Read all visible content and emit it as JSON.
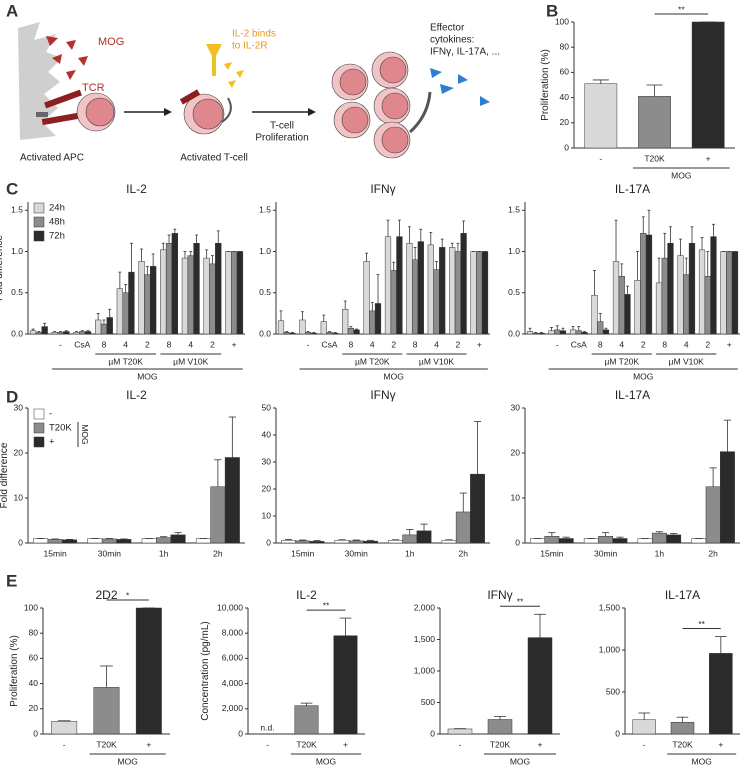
{
  "panel_labels": [
    "A",
    "B",
    "C",
    "D",
    "E"
  ],
  "diagram": {
    "antigen": "MOG",
    "receptor": "TCR",
    "apc_label": "Activated APC",
    "il2_note": [
      "IL-2 binds",
      "to IL-2R"
    ],
    "tcell_label": "Activated T-cell",
    "proliferation": [
      "T-cell",
      "Proliferation"
    ],
    "cytokines": [
      "Effector",
      "cytokines:",
      "IFNγ, IL-17A, ..."
    ]
  },
  "chart_data": [
    {
      "type": "bar",
      "ylabel": "Proliferation (%)",
      "categories": [
        "-",
        "T20K",
        "+"
      ],
      "values": [
        51,
        41,
        100
      ],
      "errors": [
        3,
        9,
        0
      ],
      "colors": [
        "#d9d9d9",
        "#8c8c8c",
        "#2b2b2b"
      ],
      "ylim": [
        0,
        100
      ],
      "yticks": [
        0,
        20,
        40,
        60,
        80,
        100
      ],
      "groups": [
        {
          "label": "MOG",
          "from": 1,
          "to": 2
        }
      ],
      "significance": [
        {
          "label": "**",
          "from": 1,
          "to": 2
        }
      ]
    },
    {
      "type": "bar",
      "title": "IL-2",
      "ylabel": "Fold difference",
      "categories": [
        null,
        "-",
        "CsA",
        "8",
        "4",
        "2",
        "8",
        "4",
        "2",
        "+"
      ],
      "ylim": [
        0,
        1.6
      ],
      "yticks": [
        {
          "value": 0,
          "label": "0.0"
        },
        {
          "value": 0.5,
          "label": "0.5"
        },
        {
          "value": 1,
          "label": "1.0"
        },
        {
          "value": 1.5,
          "label": "1.5"
        }
      ],
      "legend": "top-left",
      "series": [
        {
          "name": "24h",
          "color": "#d9d9d9",
          "values": [
            0.04,
            0.02,
            0.02,
            0.17,
            0.55,
            0.88,
            1.02,
            0.92,
            0.92,
            1.0
          ],
          "errors": [
            0.02,
            0.01,
            0.01,
            0.08,
            0.2,
            0.15,
            0.08,
            0.08,
            0.1,
            0
          ]
        },
        {
          "name": "48h",
          "color": "#8c8c8c",
          "values": [
            0.02,
            0.02,
            0.03,
            0.12,
            0.5,
            0.72,
            1.1,
            0.95,
            0.85,
            1.0
          ],
          "errors": [
            0.01,
            0.01,
            0.01,
            0.05,
            0.1,
            0.1,
            0.1,
            0.05,
            0.1,
            0
          ]
        },
        {
          "name": "72h",
          "color": "#2b2b2b",
          "values": [
            0.09,
            0.03,
            0.03,
            0.2,
            0.75,
            0.82,
            1.22,
            1.1,
            1.1,
            1.0
          ],
          "errors": [
            0.04,
            0.01,
            0.01,
            0.1,
            0.35,
            0.15,
            0.05,
            0.1,
            0.15,
            0
          ]
        }
      ],
      "groups": [
        {
          "label": "µM T20K",
          "from": 3,
          "to": 5
        },
        {
          "label": "µM V10K",
          "from": 6,
          "to": 8
        },
        {
          "label": "MOG",
          "from": 1,
          "to": 9
        }
      ]
    },
    {
      "type": "bar",
      "title": "IFNγ",
      "categories": [
        null,
        "-",
        "CsA",
        "8",
        "4",
        "2",
        "8",
        "4",
        "2",
        "+"
      ],
      "ylim": [
        0,
        1.6
      ],
      "yticks": [
        {
          "value": 0,
          "label": "0.0"
        },
        {
          "value": 0.5,
          "label": "0.5"
        },
        {
          "value": 1,
          "label": "1.0"
        },
        {
          "value": 1.5,
          "label": "1.5"
        }
      ],
      "series": [
        {
          "color": "#d9d9d9",
          "values": [
            0.16,
            0.17,
            0.15,
            0.3,
            0.88,
            1.18,
            1.1,
            1.08,
            1.05,
            1.0
          ],
          "errors": [
            0.12,
            0.1,
            0.08,
            0.1,
            0.1,
            0.2,
            0.2,
            0.15,
            0.05,
            0
          ]
        },
        {
          "color": "#8c8c8c",
          "values": [
            0.02,
            0.02,
            0.02,
            0.07,
            0.28,
            0.77,
            0.9,
            0.78,
            1.0,
            1.0
          ],
          "errors": [
            0.01,
            0.01,
            0.01,
            0.02,
            0.1,
            0.1,
            0.15,
            0.1,
            0.1,
            0
          ]
        },
        {
          "color": "#2b2b2b",
          "values": [
            0.01,
            0.01,
            0.01,
            0.05,
            0.37,
            1.18,
            1.12,
            1.05,
            1.22,
            1.0
          ],
          "errors": [
            0.01,
            0.01,
            0.01,
            0.01,
            0.35,
            0.2,
            0.15,
            0.1,
            0.15,
            0
          ]
        }
      ],
      "groups": [
        {
          "label": "µM T20K",
          "from": 3,
          "to": 5
        },
        {
          "label": "µM V10K",
          "from": 6,
          "to": 8
        },
        {
          "label": "MOG",
          "from": 1,
          "to": 9
        }
      ]
    },
    {
      "type": "bar",
      "title": "IL-17A",
      "categories": [
        null,
        "-",
        "CsA",
        "8",
        "4",
        "2",
        "8",
        "4",
        "2",
        "+"
      ],
      "ylim": [
        0,
        1.6
      ],
      "yticks": [
        {
          "value": 0,
          "label": "0.0"
        },
        {
          "value": 0.5,
          "label": "0.5"
        },
        {
          "value": 1,
          "label": "1.0"
        },
        {
          "value": 1.5,
          "label": "1.5"
        }
      ],
      "series": [
        {
          "color": "#d9d9d9",
          "values": [
            0.03,
            0.04,
            0.05,
            0.47,
            0.88,
            0.65,
            0.62,
            0.95,
            1.02,
            1.0
          ],
          "errors": [
            0.04,
            0.04,
            0.04,
            0.3,
            0.5,
            0.35,
            0.3,
            0.2,
            0.15,
            0
          ]
        },
        {
          "color": "#8c8c8c",
          "values": [
            0.01,
            0.05,
            0.04,
            0.15,
            0.7,
            1.22,
            0.92,
            0.72,
            0.7,
            1.0
          ],
          "errors": [
            0.01,
            0.05,
            0.05,
            0.1,
            0.15,
            0.2,
            0.3,
            0.2,
            0.3,
            0
          ]
        },
        {
          "color": "#2b2b2b",
          "values": [
            0.01,
            0.04,
            0.02,
            0.05,
            0.48,
            1.2,
            1.1,
            1.1,
            1.18,
            1.0
          ],
          "errors": [
            0.01,
            0.03,
            0.01,
            0.02,
            0.1,
            0.3,
            0.2,
            0.2,
            0.15,
            0
          ]
        }
      ],
      "groups": [
        {
          "label": "µM T20K",
          "from": 3,
          "to": 5
        },
        {
          "label": "µM V10K",
          "from": 6,
          "to": 8
        },
        {
          "label": "MOG",
          "from": 1,
          "to": 9
        }
      ]
    },
    {
      "type": "bar",
      "title": "IL-2",
      "ylabel": "Fold difference",
      "categories": [
        "15min",
        "30min",
        "1h",
        "2h"
      ],
      "ylim": [
        0,
        30
      ],
      "yticks": [
        0,
        10,
        20,
        30
      ],
      "legend": "top-left",
      "legend_group_label": "MOG",
      "series": [
        {
          "name": "-",
          "color": "#ffffff",
          "values": [
            1,
            1,
            1,
            1
          ],
          "errors": [
            0,
            0,
            0,
            0
          ]
        },
        {
          "name": "T20K",
          "color": "#8c8c8c",
          "values": [
            0.8,
            0.9,
            1.2,
            12.5
          ],
          "errors": [
            0.1,
            0.1,
            0.2,
            6
          ]
        },
        {
          "name": "+",
          "color": "#2b2b2b",
          "values": [
            0.7,
            0.8,
            1.8,
            19
          ],
          "errors": [
            0.1,
            0.1,
            0.5,
            9
          ]
        }
      ]
    },
    {
      "type": "bar",
      "title": "IFNγ",
      "categories": [
        "15min",
        "30min",
        "1h",
        "2h"
      ],
      "ylim": [
        0,
        50
      ],
      "yticks": [
        0,
        10,
        20,
        30,
        40,
        50
      ],
      "series": [
        {
          "color": "#ffffff",
          "values": [
            1,
            1,
            1,
            1
          ],
          "errors": [
            0.3,
            0.2,
            0.2,
            0.2
          ]
        },
        {
          "color": "#8c8c8c",
          "values": [
            0.8,
            0.8,
            3,
            11.5
          ],
          "errors": [
            0.3,
            0.3,
            2,
            7
          ]
        },
        {
          "color": "#2b2b2b",
          "values": [
            0.6,
            0.7,
            4.5,
            25.5
          ],
          "errors": [
            0.3,
            0.3,
            2.5,
            19.5
          ]
        }
      ]
    },
    {
      "type": "bar",
      "title": "IL-17A",
      "categories": [
        "15min",
        "30min",
        "1h",
        "2h"
      ],
      "ylim": [
        0,
        30
      ],
      "yticks": [
        0,
        10,
        20,
        30
      ],
      "series": [
        {
          "color": "#ffffff",
          "values": [
            1,
            1,
            1,
            1
          ],
          "errors": [
            0,
            0,
            0,
            0
          ]
        },
        {
          "color": "#8c8c8c",
          "values": [
            1.5,
            1.5,
            2.2,
            12.5
          ],
          "errors": [
            0.8,
            0.8,
            0.3,
            4.2
          ]
        },
        {
          "color": "#2b2b2b",
          "values": [
            1,
            1,
            1.8,
            20.3
          ],
          "errors": [
            0.3,
            0.3,
            0.3,
            7
          ]
        }
      ]
    },
    {
      "type": "bar",
      "title": "2D2",
      "ylabel": "Proliferation (%)",
      "categories": [
        "-",
        "T20K",
        "+"
      ],
      "values": [
        10,
        37,
        100
      ],
      "errors": [
        0.5,
        17,
        0
      ],
      "colors": [
        "#d9d9d9",
        "#8c8c8c",
        "#2b2b2b"
      ],
      "ylim": [
        0,
        100
      ],
      "yticks": [
        0,
        20,
        40,
        60,
        80,
        100
      ],
      "groups": [
        {
          "label": "MOG",
          "from": 1,
          "to": 2
        }
      ],
      "significance": [
        {
          "label": "*",
          "from": 1,
          "to": 2
        }
      ]
    },
    {
      "type": "bar",
      "title": "IL-2",
      "ylabel": "Concentration (pg/mL)",
      "categories": [
        "-",
        "T20K",
        "+"
      ],
      "values": [
        null,
        2250,
        7800
      ],
      "value_labels": [
        "n.d.",
        null,
        null
      ],
      "errors": [
        null,
        200,
        1400
      ],
      "colors": [
        "#d9d9d9",
        "#8c8c8c",
        "#2b2b2b"
      ],
      "ylim": [
        0,
        10000
      ],
      "yticks": [
        0,
        {
          "value": 2000,
          "label": "2,000"
        },
        {
          "value": 4000,
          "label": "4,000"
        },
        {
          "value": 6000,
          "label": "6,000"
        },
        {
          "value": 8000,
          "label": "8,000"
        },
        {
          "value": 10000,
          "label": "10,000"
        }
      ],
      "groups": [
        {
          "label": "MOG",
          "from": 1,
          "to": 2
        }
      ],
      "significance": [
        {
          "label": "**",
          "from": 1,
          "to": 2
        }
      ]
    },
    {
      "type": "bar",
      "title": "IFNγ",
      "categories": [
        "-",
        "T20K",
        "+"
      ],
      "values": [
        80,
        230,
        1530
      ],
      "errors": [
        5,
        50,
        370
      ],
      "colors": [
        "#d9d9d9",
        "#8c8c8c",
        "#2b2b2b"
      ],
      "ylim": [
        0,
        2000
      ],
      "yticks": [
        0,
        500,
        {
          "value": 1000,
          "label": "1,000"
        },
        {
          "value": 1500,
          "label": "1,500"
        },
        {
          "value": 2000,
          "label": "2,000"
        }
      ],
      "groups": [
        {
          "label": "MOG",
          "from": 1,
          "to": 2
        }
      ],
      "significance": [
        {
          "label": "**",
          "from": 1,
          "to": 2
        }
      ]
    },
    {
      "type": "bar",
      "title": "IL-17A",
      "categories": [
        "-",
        "T20K",
        "+"
      ],
      "values": [
        170,
        140,
        960
      ],
      "errors": [
        80,
        60,
        200
      ],
      "colors": [
        "#d9d9d9",
        "#8c8c8c",
        "#2b2b2b"
      ],
      "ylim": [
        0,
        1500
      ],
      "yticks": [
        0,
        500,
        {
          "value": 1000,
          "label": "1,000"
        },
        {
          "value": 1500,
          "label": "1,500"
        }
      ],
      "groups": [
        {
          "label": "MOG",
          "from": 1,
          "to": 2
        }
      ],
      "significance": [
        {
          "label": "**",
          "from": 1,
          "to": 2
        }
      ]
    }
  ]
}
